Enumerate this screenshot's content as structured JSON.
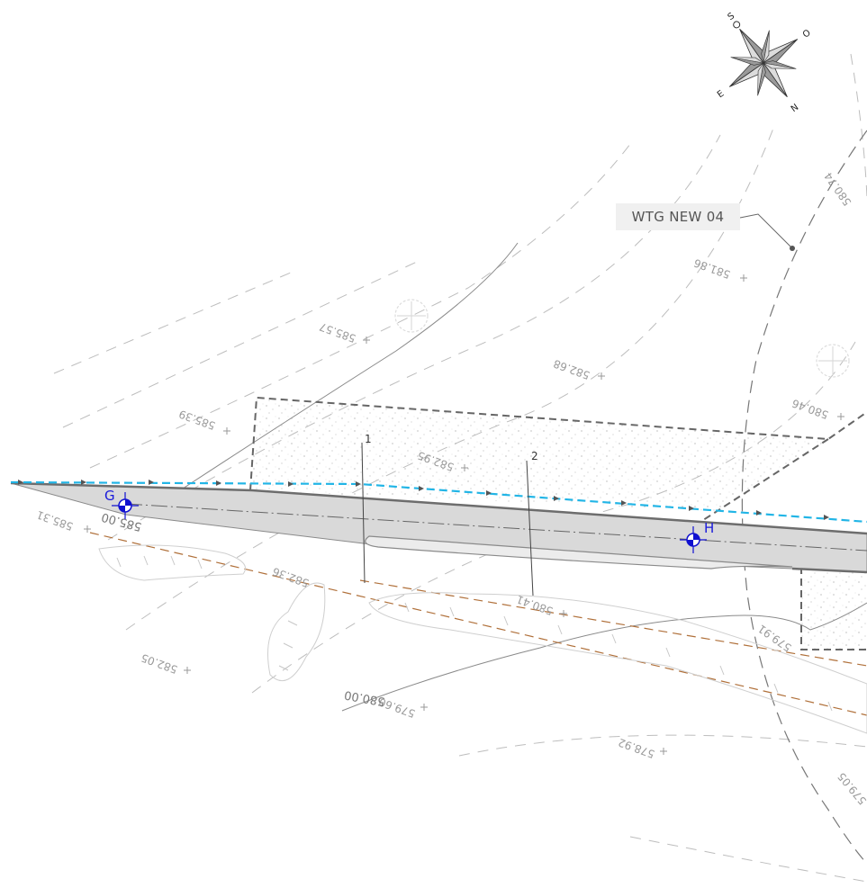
{
  "turbine": {
    "label": "WTG NEW 04"
  },
  "compass": {
    "north": "N",
    "south": "S",
    "east": "E",
    "west": "O"
  },
  "survey_points": [
    {
      "label": "G"
    },
    {
      "label": "H"
    }
  ],
  "sections": [
    {
      "label": "1"
    },
    {
      "label": "2"
    }
  ],
  "contour_labels": [
    {
      "text": "580.00"
    },
    {
      "text": "585.00"
    }
  ],
  "spot_elevations": [
    {
      "text": "580.74"
    },
    {
      "text": "581.86"
    },
    {
      "text": "585.57"
    },
    {
      "text": "582.68"
    },
    {
      "text": "585.39"
    },
    {
      "text": "580.46"
    },
    {
      "text": "582.95"
    },
    {
      "text": "585.31"
    },
    {
      "text": "582.36"
    },
    {
      "text": "580.41"
    },
    {
      "text": "579.91"
    },
    {
      "text": "582.05"
    },
    {
      "text": "579.60"
    },
    {
      "text": "578.92"
    },
    {
      "text": "579.05"
    }
  ],
  "colors": {
    "road_fill": "#d9d9d9",
    "edge_line": "#22b5e6",
    "ditch_line": "#b0703a",
    "point_marker": "#1010d0",
    "boundary": "#555555"
  }
}
